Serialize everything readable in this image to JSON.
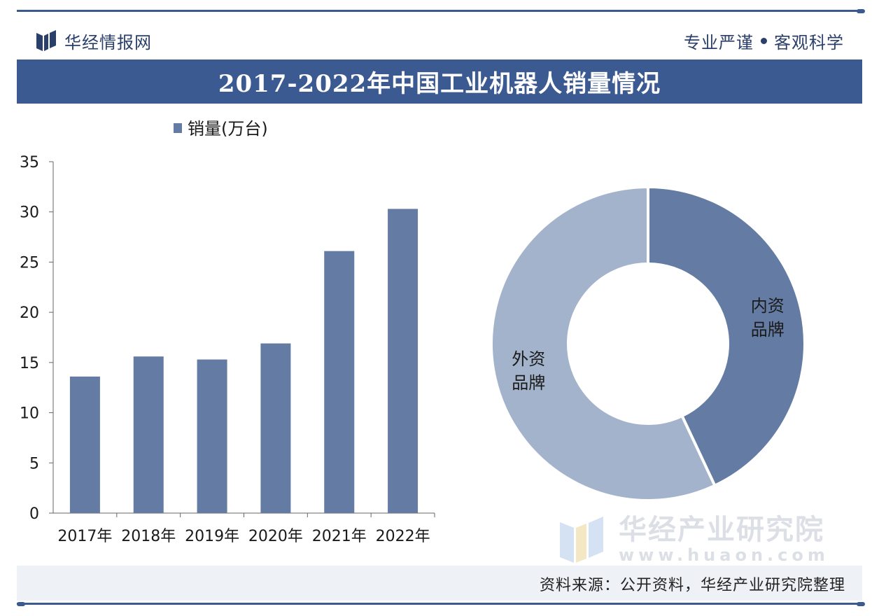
{
  "header": {
    "brand": "华经情报网",
    "motto_left": "专业严谨",
    "motto_right": "客观科学"
  },
  "title": "2017-2022年中国工业机器人销量情况",
  "chart_data": [
    {
      "type": "bar",
      "legend": "销量(万台)",
      "categories": [
        "2017年",
        "2018年",
        "2019年",
        "2020年",
        "2021年",
        "2022年"
      ],
      "series": [
        {
          "name": "销量(万台)",
          "values": [
            13.6,
            15.6,
            15.3,
            16.9,
            26.1,
            30.3
          ]
        }
      ],
      "ylim": [
        0,
        35
      ],
      "yticks": [
        0,
        5,
        10,
        15,
        20,
        25,
        30,
        35
      ],
      "grid": false,
      "bar_color": "#647ca3"
    },
    {
      "type": "pie",
      "style": "donut",
      "slices": [
        {
          "label": "内资品牌",
          "label_line1": "内资",
          "label_line2": "品牌",
          "value": 43,
          "color": "#647ca3"
        },
        {
          "label": "外资品牌",
          "label_line1": "外资",
          "label_line2": "品牌",
          "value": 57,
          "color": "#a3b3cb"
        }
      ]
    }
  ],
  "watermark": {
    "name": "华经产业研究院",
    "url": "www.huaon.com"
  },
  "footer": {
    "source": "资料来源：公开资料，华经产业研究院整理"
  },
  "colors": {
    "accent": "#3b5a91",
    "bar": "#647ca3",
    "donut_light": "#a3b3cb",
    "footer_bg": "#eef1f6"
  }
}
